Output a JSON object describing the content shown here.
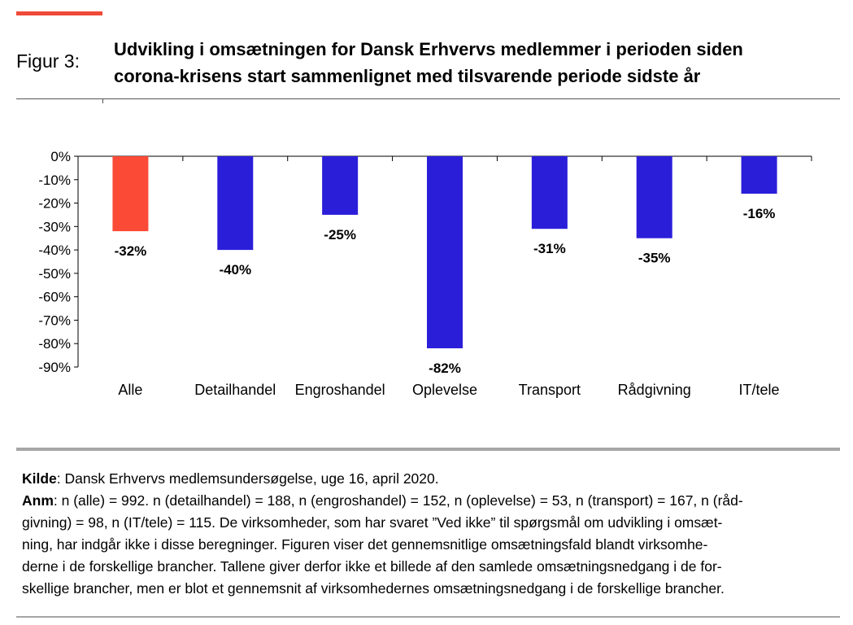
{
  "figure_label": "Figur 3:",
  "title_lines": [
    "Udvikling i omsætningen for Dansk Erhvervs medlemmer i perioden siden",
    "corona-krisens start sammenlignet med tilsvarende periode sidste år"
  ],
  "chart_data": {
    "type": "bar",
    "categories": [
      "Alle",
      "Detailhandel",
      "Engroshandel",
      "Oplevelse",
      "Transport",
      "Rådgivning",
      "IT/tele"
    ],
    "values": [
      -32,
      -40,
      -25,
      -82,
      -31,
      -35,
      -16
    ],
    "data_labels": [
      "-32%",
      "-40%",
      "-25%",
      "-82%",
      "-31%",
      "-35%",
      "-16%"
    ],
    "ylim": [
      -90,
      0
    ],
    "yticks": [
      0,
      -10,
      -20,
      -30,
      -40,
      -50,
      -60,
      -70,
      -80,
      -90
    ],
    "ytick_labels": [
      "0%",
      "-10%",
      "-20%",
      "-30%",
      "-40%",
      "-50%",
      "-60%",
      "-70%",
      "-80%",
      "-90%"
    ],
    "highlight_index": 0,
    "colors": {
      "highlight": "#fb4a36",
      "bar": "#2b1ed9"
    },
    "grid": false,
    "legend": "none"
  },
  "source": {
    "kilde_label": "Kilde",
    "kilde_text": ": Dansk Erhvervs medlemsundersøgelse, uge 16, april 2020.",
    "anm_label": "Anm",
    "anm_lines": [
      ": n (alle) = 992. n (detailhandel) = 188, n (engroshandel) = 152, n (oplevelse) = 53, n (transport) = 167, n (råd-",
      "givning) = 98, n (IT/tele) = 115. De virksomheder, som har svaret ”Ved ikke” til spørgsmål om udvikling i omsæt-",
      "ning, har indgår ikke i disse beregninger. Figuren viser det gennemsnitlige omsætningsfald blandt virksomhe-",
      "derne i de forskellige brancher. Tallene giver derfor ikke et billede af den samlede omsætningsnedgang i de for-",
      "skellige brancher, men er blot et gennemsnit af virksomhedernes omsætningsnedgang i de forskellige brancher."
    ]
  }
}
